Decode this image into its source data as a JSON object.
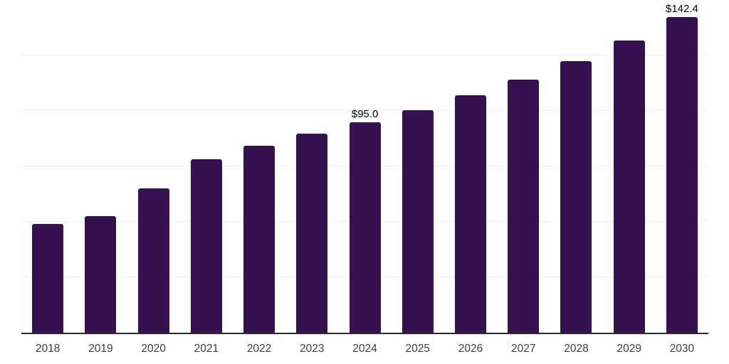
{
  "chart_data": {
    "type": "bar",
    "title": "",
    "xlabel": "",
    "ylabel": "",
    "categories": [
      "2018",
      "2019",
      "2020",
      "2021",
      "2022",
      "2023",
      "2024",
      "2025",
      "2026",
      "2027",
      "2028",
      "2029",
      "2030"
    ],
    "values": [
      49.2,
      52.7,
      65.2,
      78.3,
      84.4,
      89.8,
      95.0,
      100.4,
      107.1,
      114.1,
      122.4,
      131.7,
      142.4
    ],
    "bar_labels": [
      "",
      "",
      "",
      "",
      "",
      "",
      "$95.0",
      "",
      "",
      "",
      "",
      "",
      "$142.4"
    ],
    "ylim": [
      0,
      150
    ],
    "gridline_step": 25,
    "grid": "horizontal-only",
    "legend_position": "none",
    "y_tick_labels_visible": false,
    "colors": {
      "bar_fill": "#351150",
      "axis_line": "#2b2b2b",
      "gridline": "#f2f2f2",
      "data_label_text": "#000000",
      "tick_label_text": "#3d3d3d",
      "background": "#ffffff"
    }
  }
}
